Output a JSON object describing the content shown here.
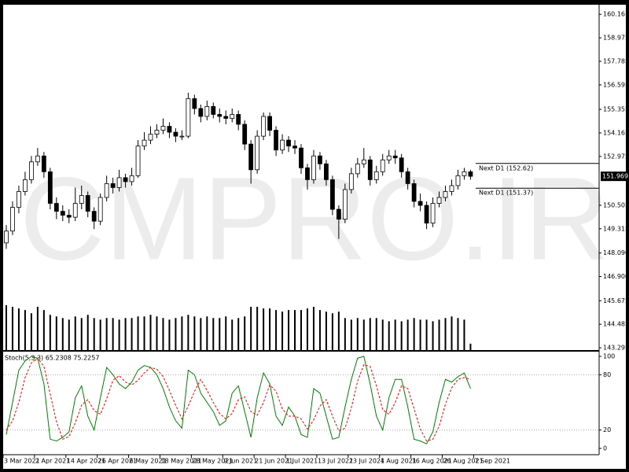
{
  "chart_data": [
    {
      "type": "candlestick",
      "watermark": "CMPRO.IR",
      "xlim": [
        0,
        95
      ],
      "xticks": [
        {
          "value": 0,
          "label": "3 Mar 2021"
        },
        {
          "value": 5,
          "label": "2 Apr 2021"
        },
        {
          "value": 10,
          "label": "14 Apr 2021"
        },
        {
          "value": 15,
          "label": "26 Apr 2021"
        },
        {
          "value": 20,
          "label": "6 May 2021"
        },
        {
          "value": 25,
          "label": "18 May 2021"
        },
        {
          "value": 30,
          "label": "28 May 2021"
        },
        {
          "value": 35,
          "label": "9 Jun 2021"
        },
        {
          "value": 40,
          "label": "21 Jun 2021"
        },
        {
          "value": 45,
          "label": "1 Jul 2021"
        },
        {
          "value": 50,
          "label": "13 Jul 2021"
        },
        {
          "value": 55,
          "label": "23 Jul 2021"
        },
        {
          "value": 60,
          "label": "4 Aug 2021"
        },
        {
          "value": 65,
          "label": "16 Aug 2021"
        },
        {
          "value": 70,
          "label": "26 Aug 2021"
        },
        {
          "value": 75,
          "label": "7 Sep 2021"
        }
      ],
      "ylim": [
        143.18,
        160.57
      ],
      "yticks": [
        160.165,
        158.975,
        157.785,
        156.595,
        155.355,
        154.165,
        152.975,
        150.505,
        149.315,
        {
          "value": 148.09,
          "label": "148.090"
        },
        {
          "value": 146.9,
          "label": "146.900"
        },
        145.675,
        144.485,
        143.295
      ],
      "bid": 151.969,
      "next_levels": [
        {
          "value": 152.62,
          "label": "Next D1 (152.62)"
        },
        {
          "value": 151.37,
          "label": "Next D1 (151.37)"
        }
      ],
      "open": [
        148.6,
        149.2,
        150.4,
        151.2,
        151.8,
        152.7,
        153.0,
        152.2,
        150.6,
        150.2,
        150.0,
        149.9,
        150.6,
        151.0,
        150.2,
        149.7,
        150.9,
        151.6,
        151.4,
        151.9,
        151.7,
        152.0,
        153.5,
        153.8,
        154.1,
        154.3,
        154.5,
        154.2,
        154.0,
        154.0,
        155.9,
        155.4,
        155.0,
        155.5,
        155.1,
        155.0,
        154.9,
        155.1,
        154.6,
        153.6,
        152.3,
        154.0,
        155.0,
        154.3,
        153.3,
        153.8,
        153.5,
        153.4,
        152.4,
        151.8,
        153.0,
        152.6,
        151.8,
        150.3,
        149.8,
        151.3,
        152.1,
        152.6,
        152.8,
        151.8,
        152.2,
        152.8,
        153.0,
        152.9,
        152.2,
        151.6,
        150.7,
        150.5,
        149.6,
        150.6,
        150.9,
        151.2,
        151.5,
        152.0,
        152.2
      ],
      "high": [
        149.5,
        150.7,
        151.5,
        152.2,
        153.0,
        153.4,
        153.2,
        152.4,
        150.9,
        150.5,
        150.3,
        151.4,
        151.5,
        151.2,
        150.4,
        151.1,
        152.0,
        151.9,
        152.3,
        152.1,
        152.4,
        153.8,
        154.2,
        154.5,
        154.6,
        154.9,
        154.7,
        154.4,
        154.3,
        156.2,
        156.1,
        155.6,
        155.8,
        155.7,
        155.4,
        155.3,
        155.4,
        155.3,
        154.8,
        153.8,
        154.3,
        155.2,
        155.2,
        154.5,
        154.1,
        154.0,
        153.8,
        153.6,
        152.6,
        153.3,
        153.2,
        152.8,
        152.0,
        150.5,
        151.6,
        152.4,
        152.9,
        153.4,
        153.0,
        152.5,
        153.1,
        153.3,
        153.3,
        153.1,
        152.4,
        151.8,
        151.1,
        150.7,
        150.9,
        151.2,
        151.5,
        151.8,
        152.3,
        152.4,
        152.3
      ],
      "low": [
        148.3,
        149.0,
        150.1,
        151.0,
        151.6,
        152.5,
        151.9,
        150.3,
        149.8,
        149.7,
        149.6,
        149.7,
        150.3,
        149.9,
        149.3,
        149.5,
        150.7,
        151.1,
        151.2,
        151.4,
        151.5,
        151.9,
        153.3,
        153.6,
        153.9,
        154.1,
        153.9,
        153.7,
        153.8,
        153.9,
        155.1,
        154.7,
        154.8,
        154.9,
        154.7,
        154.6,
        154.7,
        154.3,
        153.3,
        151.6,
        152.1,
        153.8,
        154.0,
        153.0,
        153.1,
        153.2,
        153.1,
        152.1,
        151.3,
        151.6,
        152.3,
        151.5,
        150.0,
        148.8,
        149.6,
        151.1,
        151.9,
        152.4,
        151.5,
        151.6,
        152.0,
        152.6,
        152.6,
        151.9,
        151.3,
        150.4,
        150.2,
        149.3,
        149.4,
        150.4,
        150.7,
        151.0,
        151.3,
        151.8,
        151.8
      ],
      "close": [
        149.2,
        150.4,
        151.2,
        151.8,
        152.7,
        153.0,
        152.2,
        150.6,
        150.2,
        150.0,
        149.9,
        150.6,
        151.0,
        150.2,
        149.7,
        150.9,
        151.6,
        151.4,
        151.9,
        151.7,
        152.0,
        153.5,
        153.8,
        154.1,
        154.3,
        154.5,
        154.2,
        154.0,
        154.0,
        155.9,
        155.4,
        155.0,
        155.5,
        155.1,
        155.0,
        154.9,
        155.1,
        154.6,
        153.6,
        152.3,
        154.0,
        155.0,
        154.3,
        153.3,
        153.8,
        153.5,
        153.4,
        152.4,
        151.8,
        153.0,
        152.6,
        151.8,
        150.3,
        149.8,
        151.3,
        152.1,
        152.6,
        152.8,
        151.8,
        152.2,
        152.8,
        153.0,
        152.9,
        152.2,
        151.6,
        150.7,
        150.5,
        149.6,
        150.6,
        150.9,
        151.2,
        151.5,
        152.0,
        152.2,
        151.97
      ],
      "volume": [
        56,
        54,
        52,
        50,
        46,
        54,
        50,
        44,
        42,
        40,
        38,
        42,
        40,
        44,
        40,
        38,
        40,
        40,
        38,
        40,
        40,
        42,
        42,
        44,
        42,
        40,
        38,
        40,
        42,
        44,
        42,
        40,
        42,
        40,
        40,
        42,
        38,
        40,
        42,
        54,
        54,
        52,
        52,
        50,
        48,
        50,
        50,
        50,
        52,
        54,
        50,
        48,
        46,
        48,
        40,
        38,
        40,
        38,
        40,
        40,
        38,
        36,
        38,
        36,
        38,
        40,
        38,
        38,
        36,
        38,
        40,
        42,
        40,
        38,
        8
      ],
      "colors": {
        "up": "#ffffff",
        "down": "#000000",
        "outline": "#000000",
        "volume": "#000000"
      }
    },
    {
      "type": "stochastic",
      "label": "Stoch(5,3,3) 65.2308 75.2257",
      "ylim": [
        0,
        100
      ],
      "yticks": [
        100,
        80,
        20,
        0
      ],
      "levels": [
        80,
        20
      ],
      "series": [
        {
          "name": "%K",
          "color": "#008000",
          "values": [
            15,
            50,
            85,
            95,
            100,
            98,
            70,
            10,
            8,
            12,
            18,
            55,
            68,
            35,
            20,
            55,
            88,
            80,
            70,
            65,
            72,
            85,
            90,
            88,
            80,
            65,
            45,
            30,
            22,
            85,
            80,
            60,
            50,
            40,
            25,
            30,
            60,
            68,
            40,
            12,
            55,
            82,
            70,
            35,
            25,
            45,
            35,
            15,
            12,
            65,
            60,
            35,
            10,
            12,
            45,
            75,
            98,
            100,
            70,
            35,
            20,
            55,
            75,
            75,
            45,
            10,
            8,
            5,
            18,
            50,
            75,
            72,
            78,
            82,
            65
          ]
        },
        {
          "name": "%D",
          "color": "#ff0000",
          "values": [
            20,
            30,
            50,
            77,
            93,
            98,
            89,
            59,
            29,
            10,
            13,
            28,
            47,
            53,
            41,
            37,
            54,
            74,
            79,
            72,
            69,
            74,
            82,
            88,
            86,
            78,
            63,
            47,
            32,
            46,
            62,
            75,
            63,
            50,
            38,
            32,
            38,
            53,
            56,
            40,
            36,
            50,
            69,
            62,
            43,
            35,
            35,
            32,
            21,
            31,
            46,
            53,
            35,
            19,
            22,
            44,
            73,
            91,
            89,
            68,
            42,
            37,
            50,
            68,
            65,
            43,
            21,
            8,
            10,
            24,
            48,
            66,
            75,
            77,
            75
          ]
        }
      ]
    }
  ]
}
